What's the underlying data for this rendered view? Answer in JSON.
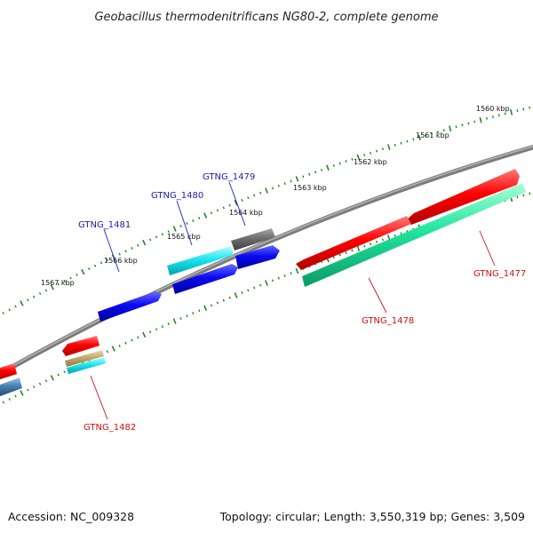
{
  "title": "Geobacillus thermodenitrificans NG80-2, complete genome",
  "footer": {
    "accession": "Accession: NC_009328",
    "summary": "Topology: circular; Length: 3,550,319 bp; Genes: 3,509"
  },
  "colors": {
    "backbone": "#8c8c8c",
    "tick": "#1d8a1d",
    "forward_label": "#1c1cb4",
    "reverse_label": "#cc1111"
  },
  "ticks": [
    {
      "label": "1560 kbp"
    },
    {
      "label": "1561 kbp"
    },
    {
      "label": "1562 kbp"
    },
    {
      "label": "1563 kbp"
    },
    {
      "label": "1564 kbp"
    },
    {
      "label": "1565 kbp"
    },
    {
      "label": "1566 kbp"
    },
    {
      "label": "1567 kbp"
    }
  ],
  "genes": [
    {
      "label": "GTNG_1477",
      "strand": "reverse"
    },
    {
      "label": "GTNG_1478",
      "strand": "reverse"
    },
    {
      "label": "GTNG_1479",
      "strand": "forward"
    },
    {
      "label": "GTNG_1480",
      "strand": "forward"
    },
    {
      "label": "GTNG_1481",
      "strand": "forward"
    },
    {
      "label": "GTNG_1482",
      "strand": "reverse"
    }
  ]
}
